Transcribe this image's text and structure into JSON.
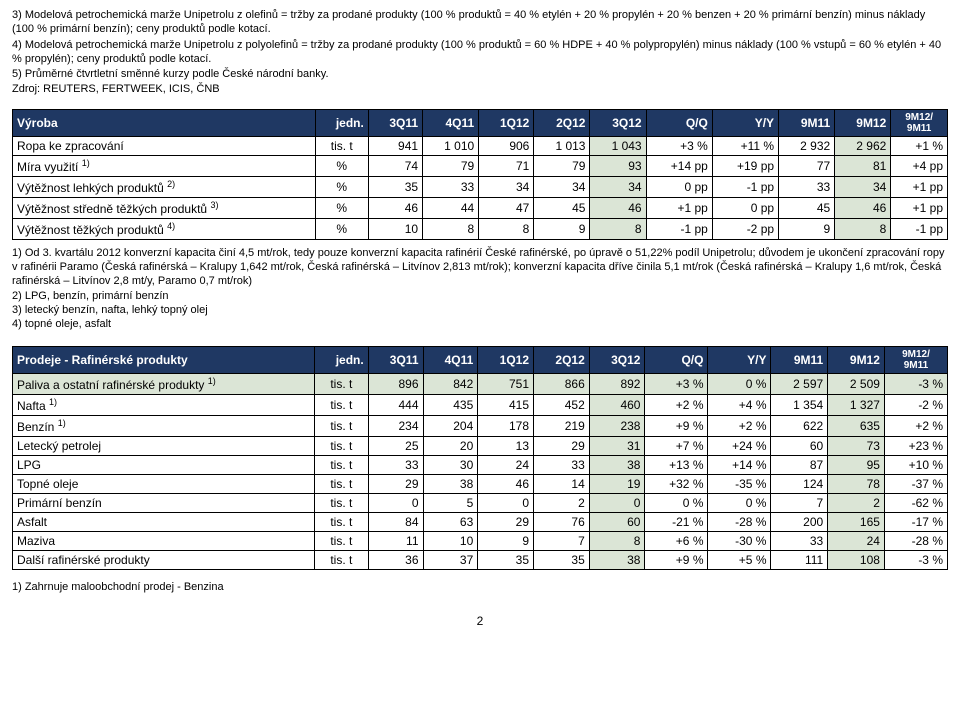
{
  "notes": [
    "3) Modelová petrochemická marže Unipetrolu z olefinů = tržby za prodané produkty (100 % produktů = 40 % etylén + 20 % propylén + 20 % benzen + 20 % primární benzín) minus náklady (100 % primární benzín); ceny produktů podle kotací.",
    "4) Modelová petrochemická marže Unipetrolu z polyolefinů = tržby za prodané produkty (100 % produktů = 60 % HDPE + 40 % polypropylén) minus náklady (100 % vstupů = 60 % etylén + 40 % propylén); ceny produktů podle kotací.",
    "5) Průměrné čtvrtletní směnné kurzy podle České národní banky.",
    "Zdroj: REUTERS, FERTWEEK, ICIS, ČNB"
  ],
  "table1": {
    "title": "Výroba",
    "headers": [
      "jedn.",
      "3Q11",
      "4Q11",
      "1Q12",
      "2Q12",
      "3Q12",
      "Q/Q",
      "Y/Y",
      "9M11",
      "9M12",
      "9M12/ 9M11"
    ],
    "rows": [
      {
        "label": "Ropa ke zpracování",
        "sup": "",
        "unit": "tis. t",
        "v": [
          "941",
          "1 010",
          "906",
          "1 013",
          "1 043",
          "+3 %",
          "+11 %",
          "2 932",
          "2 962",
          "+1 %"
        ]
      },
      {
        "label": "Míra využití",
        "sup": "1)",
        "unit": "%",
        "v": [
          "74",
          "79",
          "71",
          "79",
          "93",
          "+14 pp",
          "+19 pp",
          "77",
          "81",
          "+4 pp"
        ]
      },
      {
        "label": "Výtěžnost lehkých produktů",
        "sup": "2)",
        "unit": "%",
        "v": [
          "35",
          "33",
          "34",
          "34",
          "34",
          "0 pp",
          "-1 pp",
          "33",
          "34",
          "+1 pp"
        ]
      },
      {
        "label": "Výtěžnost středně těžkých produktů",
        "sup": "3)",
        "unit": "%",
        "v": [
          "46",
          "44",
          "47",
          "45",
          "46",
          "+1 pp",
          "0 pp",
          "45",
          "46",
          "+1 pp"
        ]
      },
      {
        "label": "Výtěžnost těžkých produktů",
        "sup": "4)",
        "unit": "%",
        "v": [
          "10",
          "8",
          "8",
          "9",
          "8",
          "-1 pp",
          "-2 pp",
          "9",
          "8",
          "-1 pp"
        ]
      }
    ]
  },
  "footnotes1": [
    "1) Od 3. kvartálu 2012 konverzní kapacita činí 4,5 mt/rok, tedy pouze konverzní kapacita rafinérií České rafinérské, po úpravě o 51,22% podíl Unipetrolu; důvodem je ukončení zpracování ropy v rafinérii Paramo (Česká rafinérská – Kralupy 1,642 mt/rok, Česká rafinérská – Litvínov 2,813 mt/rok); konverzní kapacita dříve činila 5,1 mt/rok (Česká rafinérská – Kralupy 1,6 mt/rok, Česká rafinérská – Litvínov 2,8 mt/y, Paramo 0,7 mt/rok)",
    "2) LPG, benzín, primární benzín",
    "3) letecký benzín, nafta, lehký topný olej",
    "4) topné oleje, asfalt"
  ],
  "table2": {
    "title": "Prodeje - Rafinérské produkty",
    "headers": [
      "jedn.",
      "3Q11",
      "4Q11",
      "1Q12",
      "2Q12",
      "3Q12",
      "Q/Q",
      "Y/Y",
      "9M11",
      "9M12",
      "9M12/ 9M11"
    ],
    "rows": [
      {
        "label": "Paliva a ostatní rafinérské produkty",
        "sup": "1)",
        "unit": "tis. t",
        "v": [
          "896",
          "842",
          "751",
          "866",
          "892",
          "+3 %",
          "0 %",
          "2 597",
          "2 509",
          "-3 %"
        ],
        "hlrow": true
      },
      {
        "label": "Nafta",
        "sup": "1)",
        "unit": "tis. t",
        "v": [
          "444",
          "435",
          "415",
          "452",
          "460",
          "+2 %",
          "+4 %",
          "1 354",
          "1 327",
          "-2 %"
        ]
      },
      {
        "label": "Benzín",
        "sup": "1)",
        "unit": "tis. t",
        "v": [
          "234",
          "204",
          "178",
          "219",
          "238",
          "+9 %",
          "+2 %",
          "622",
          "635",
          "+2 %"
        ]
      },
      {
        "label": "Letecký petrolej",
        "sup": "",
        "unit": "tis. t",
        "v": [
          "25",
          "20",
          "13",
          "29",
          "31",
          "+7 %",
          "+24 %",
          "60",
          "73",
          "+23 %"
        ]
      },
      {
        "label": "LPG",
        "sup": "",
        "unit": "tis. t",
        "v": [
          "33",
          "30",
          "24",
          "33",
          "38",
          "+13 %",
          "+14 %",
          "87",
          "95",
          "+10 %"
        ]
      },
      {
        "label": "Topné oleje",
        "sup": "",
        "unit": "tis. t",
        "v": [
          "29",
          "38",
          "46",
          "14",
          "19",
          "+32 %",
          "-35 %",
          "124",
          "78",
          "-37 %"
        ]
      },
      {
        "label": "Primární benzín",
        "sup": "",
        "unit": "tis. t",
        "v": [
          "0",
          "5",
          "0",
          "2",
          "0",
          "0 %",
          "0 %",
          "7",
          "2",
          "-62 %"
        ]
      },
      {
        "label": "Asfalt",
        "sup": "",
        "unit": "tis. t",
        "v": [
          "84",
          "63",
          "29",
          "76",
          "60",
          "-21 %",
          "-28 %",
          "200",
          "165",
          "-17 %"
        ]
      },
      {
        "label": "Maziva",
        "sup": "",
        "unit": "tis. t",
        "v": [
          "11",
          "10",
          "9",
          "7",
          "8",
          "+6 %",
          "-30 %",
          "33",
          "24",
          "-28 %"
        ]
      },
      {
        "label": "Další rafinérské produkty",
        "sup": "",
        "unit": "tis. t",
        "v": [
          "36",
          "37",
          "35",
          "35",
          "38",
          "+9 %",
          "+5 %",
          "111",
          "108",
          "-3 %"
        ]
      }
    ]
  },
  "footnotes2": [
    "1) Zahrnuje maloobchodní prodej - Benzina"
  ],
  "pageNumber": "2",
  "colors": {
    "headerBg": "#1f3863",
    "headerFg": "#ffffff",
    "highlight": "#dbe5d6"
  }
}
